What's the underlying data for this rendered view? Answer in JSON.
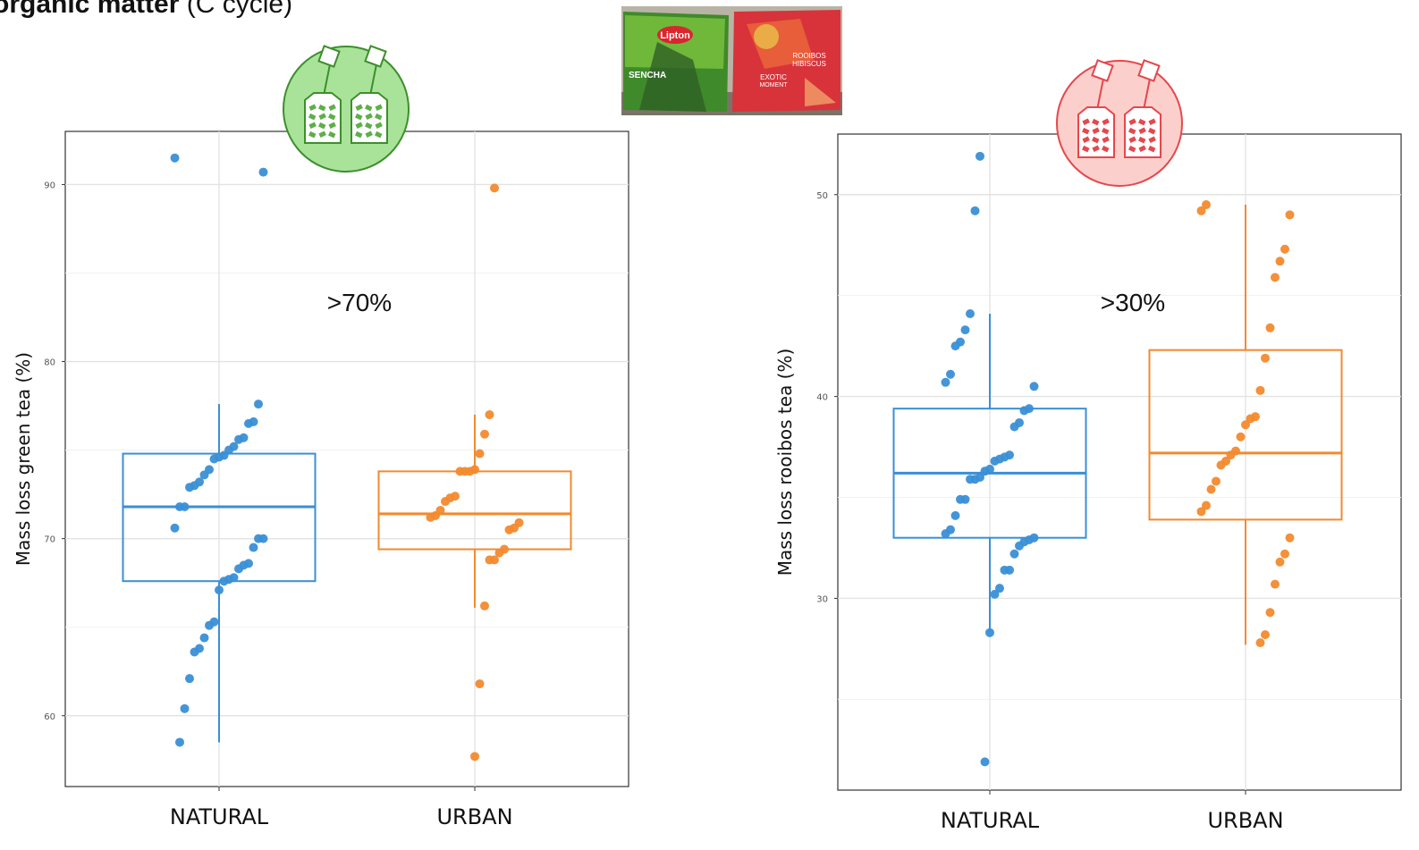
{
  "header": {
    "title_bold": "organic matter",
    "title_rest": " (C cycle)"
  },
  "photo": {
    "green_box_brand": "Lipton",
    "green_box_label": "SENCHA",
    "red_box_label_1": "ROOIBOS",
    "red_box_label_2": "HIBISCUS",
    "red_box_label_3": "EXOTIC",
    "red_box_label_4": "MOMENT"
  },
  "colors": {
    "natural": "#3a8fd6",
    "urban": "#f28a2e",
    "green_icon": "#3d8f2c",
    "red_icon": "#e5484d"
  },
  "icons": [
    "green-tea-bags-icon",
    "rooibos-tea-bags-icon"
  ],
  "chart_data": [
    {
      "type": "box",
      "title": "",
      "ylabel": "Mass loss green tea (%)",
      "xlabel": "",
      "categories": [
        "NATURAL",
        "URBAN"
      ],
      "ylim": [
        56,
        93
      ],
      "yticks": [
        60,
        70,
        80,
        90
      ],
      "annotation": ">70%",
      "boxes": [
        {
          "name": "NATURAL",
          "q1": 67.6,
          "median": 71.8,
          "q3": 74.8,
          "whisker_low": 58.5,
          "whisker_high": 77.6
        },
        {
          "name": "URBAN",
          "q1": 69.4,
          "median": 71.4,
          "q3": 73.8,
          "whisker_low": 66.1,
          "whisker_high": 77.0
        }
      ],
      "points": [
        {
          "category": "NATURAL",
          "values": [
            91.5,
            90.7,
            77.6,
            76.6,
            76.5,
            75.7,
            75.6,
            75.2,
            75.0,
            74.7,
            74.6,
            74.5,
            73.9,
            73.6,
            73.2,
            73.0,
            72.9,
            71.8,
            71.8,
            70.6,
            70.0,
            70.0,
            69.5,
            68.6,
            68.5,
            68.3,
            67.8,
            67.7,
            67.6,
            67.1,
            65.3,
            65.1,
            64.4,
            63.8,
            63.6,
            62.1,
            60.4,
            58.5
          ]
        },
        {
          "category": "URBAN",
          "values": [
            89.8,
            77.0,
            75.9,
            74.8,
            73.9,
            73.8,
            73.8,
            73.8,
            72.4,
            72.3,
            72.1,
            71.6,
            71.3,
            71.2,
            70.9,
            70.6,
            70.5,
            69.4,
            69.2,
            68.8,
            68.8,
            66.2,
            61.8,
            57.7
          ]
        }
      ]
    },
    {
      "type": "box",
      "title": "",
      "ylabel": "Mass loss rooibos tea (%)",
      "xlabel": "",
      "categories": [
        "NATURAL",
        "URBAN"
      ],
      "ylim": [
        20.5,
        53
      ],
      "yticks": [
        30,
        40,
        50
      ],
      "annotation": ">30%",
      "boxes": [
        {
          "name": "NATURAL",
          "q1": 33.0,
          "median": 36.2,
          "q3": 39.4,
          "whisker_low": 28.3,
          "whisker_high": 44.1
        },
        {
          "name": "URBAN",
          "q1": 33.9,
          "median": 37.2,
          "q3": 42.3,
          "whisker_low": 27.7,
          "whisker_high": 49.5
        }
      ],
      "points": [
        {
          "category": "NATURAL",
          "values": [
            51.9,
            49.2,
            44.1,
            43.3,
            42.7,
            42.5,
            41.1,
            40.7,
            40.5,
            39.4,
            39.3,
            38.7,
            38.5,
            37.1,
            37.0,
            36.9,
            36.8,
            36.4,
            36.3,
            36.0,
            35.9,
            35.9,
            34.9,
            34.9,
            34.1,
            33.4,
            33.2,
            33.0,
            32.9,
            32.8,
            32.6,
            32.2,
            31.4,
            31.4,
            30.5,
            30.2,
            28.3,
            21.9
          ]
        },
        {
          "category": "URBAN",
          "values": [
            49.5,
            49.2,
            49.0,
            47.3,
            46.7,
            45.9,
            43.4,
            41.9,
            40.3,
            39.0,
            38.9,
            38.6,
            38.0,
            37.3,
            37.1,
            36.8,
            36.6,
            35.8,
            35.4,
            34.6,
            34.3,
            33.0,
            32.2,
            31.8,
            30.7,
            29.3,
            28.2,
            27.8
          ]
        }
      ]
    }
  ]
}
